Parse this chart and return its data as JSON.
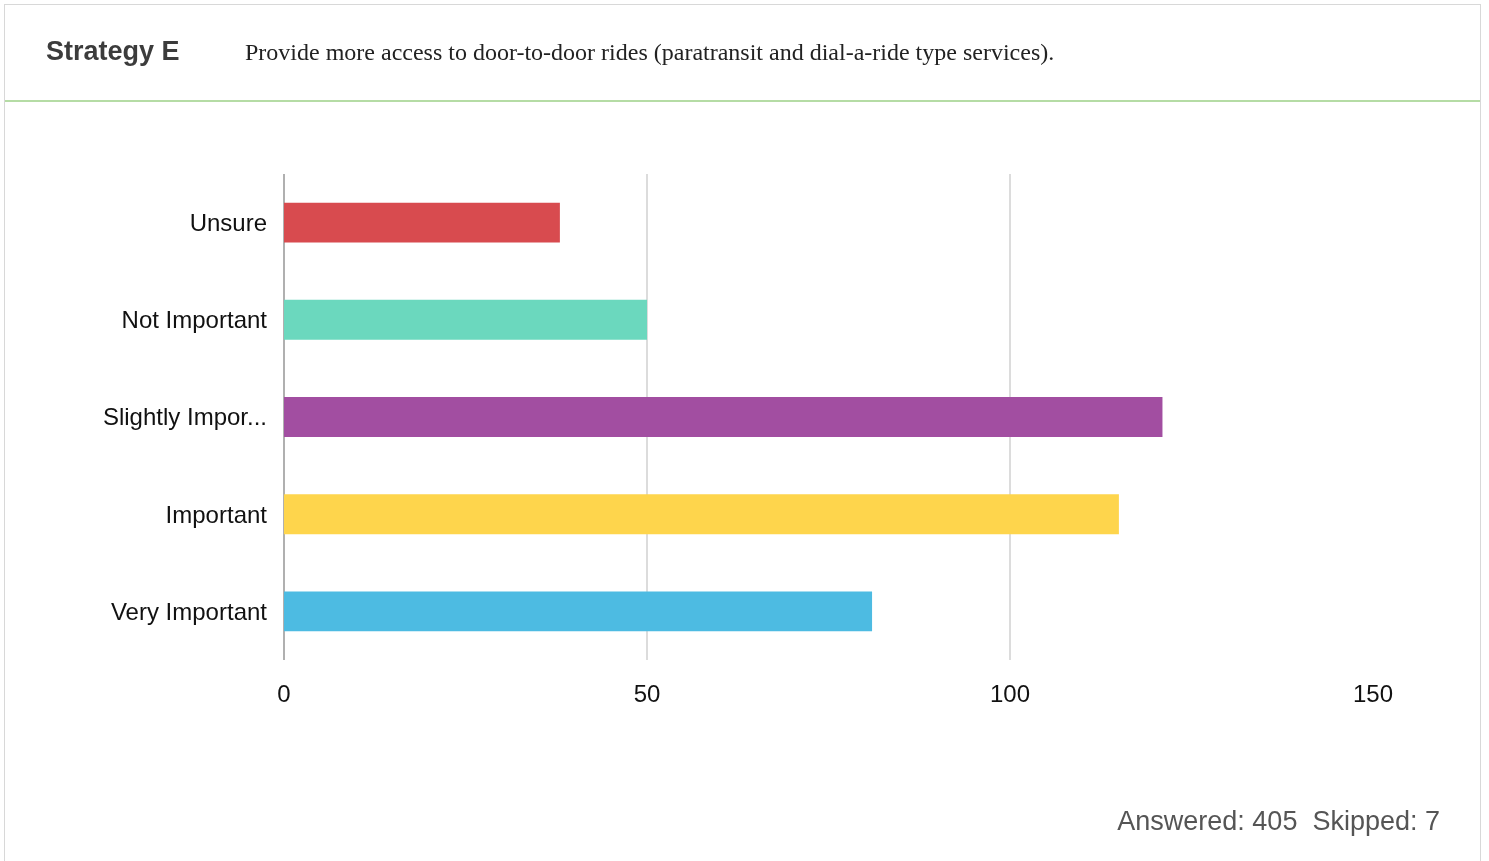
{
  "chart_data": {
    "type": "bar",
    "orientation": "horizontal",
    "title": "Strategy E",
    "subtitle": "Provide more access to door-to-door rides (paratransit and dial-a-ride type services).",
    "categories": [
      "Unsure",
      "Not Important",
      "Slightly Impor...",
      "Important",
      "Very Important"
    ],
    "values": [
      38,
      50,
      121,
      115,
      81
    ],
    "colors": [
      "#d84b4f",
      "#6bd8be",
      "#a24ea1",
      "#fed54c",
      "#4dbbe2"
    ],
    "xlim": [
      0,
      150
    ],
    "xticks": [
      0,
      50,
      100,
      150
    ],
    "grid": "x",
    "annotations": [
      "Answered: 405  Skipped: 7"
    ]
  }
}
